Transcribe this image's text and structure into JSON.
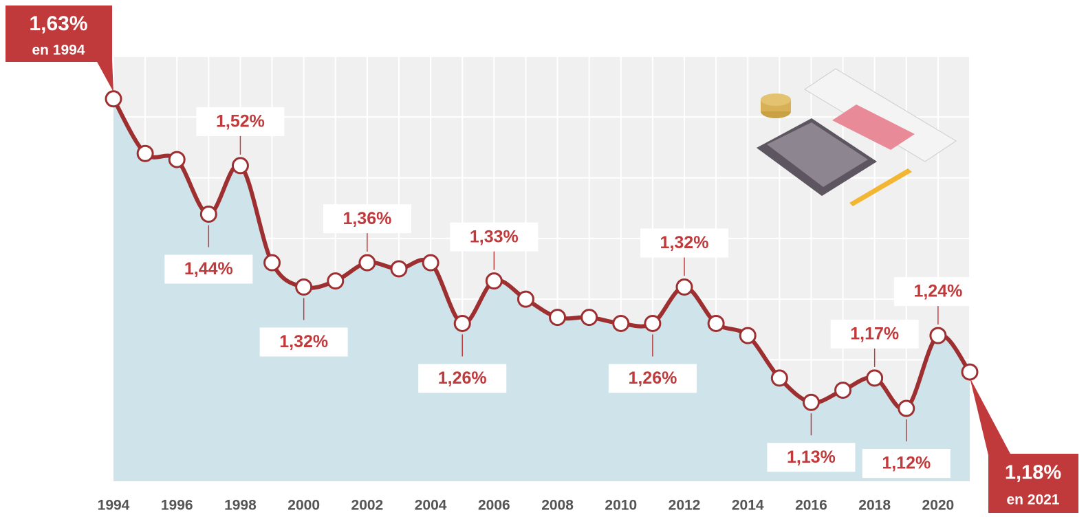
{
  "chart_data": {
    "type": "line",
    "categories": [
      "1994",
      null,
      "1996",
      null,
      "1998",
      null,
      "2000",
      null,
      "2002",
      null,
      "2004",
      null,
      "2006",
      null,
      "2008",
      null,
      "2010",
      null,
      "2012",
      null,
      "2014",
      null,
      "2016",
      null,
      "2018",
      null,
      "2020",
      null
    ],
    "values": [
      1.63,
      1.54,
      1.53,
      1.44,
      1.52,
      1.36,
      1.32,
      1.33,
      1.36,
      1.35,
      1.36,
      1.26,
      1.33,
      1.3,
      1.27,
      1.27,
      1.26,
      1.26,
      1.32,
      1.26,
      1.24,
      1.17,
      1.13,
      1.15,
      1.17,
      1.12,
      1.24,
      1.18
    ],
    "value_labels": [
      "1,63%",
      null,
      null,
      "1,44%",
      "1,52%",
      null,
      "1,32%",
      null,
      "1,36%",
      null,
      null,
      "1,26%",
      "1,33%",
      null,
      null,
      null,
      null,
      "1,26%",
      "1,32%",
      null,
      null,
      null,
      "1,13%",
      null,
      "1,17%",
      "1,12%",
      "1,24%",
      "1,18%"
    ],
    "annotations": [
      "en 1994",
      "en 2021"
    ],
    "color": "#9e2f30",
    "area_color": "#cfe4ea",
    "ylim": [
      1.0,
      1.7
    ],
    "yticks": [
      1.0,
      1.1,
      1.2,
      1.3,
      1.4,
      1.5,
      1.6,
      1.7
    ],
    "grid": true
  }
}
